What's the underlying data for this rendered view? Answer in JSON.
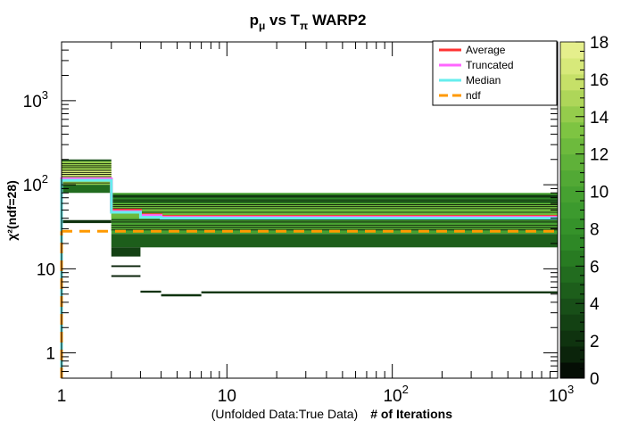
{
  "chart_data": {
    "type": "heatmap",
    "title": {
      "main": "p",
      "main_sub": "μ",
      "mid": " vs T",
      "mid_sub": "π",
      "tail": " WARP2"
    },
    "xlabel": {
      "prefix": "(Unfolded Data:True Data)",
      "main": "# of Iterations"
    },
    "ylabel": "χ²(ndf=28)",
    "x_scale": "log",
    "y_scale": "log",
    "xlim": [
      1,
      1000
    ],
    "ylim": [
      0.5,
      5000
    ],
    "x_ticks": [
      {
        "value": 1,
        "base": "1",
        "exp": ""
      },
      {
        "value": 10,
        "base": "10",
        "exp": ""
      },
      {
        "value": 100,
        "base": "10",
        "exp": "2"
      },
      {
        "value": 1000,
        "base": "10",
        "exp": "3"
      }
    ],
    "y_ticks": [
      {
        "value": 1,
        "base": "1",
        "exp": ""
      },
      {
        "value": 10,
        "base": "10",
        "exp": ""
      },
      {
        "value": 100,
        "base": "10",
        "exp": "2"
      },
      {
        "value": 1000,
        "base": "10",
        "exp": "3"
      }
    ],
    "colorbar": {
      "min": 0,
      "max": 18,
      "ticks": [
        "0",
        "2",
        "4",
        "6",
        "8",
        "10",
        "12",
        "14",
        "16",
        "18"
      ],
      "colors": [
        "#050e05",
        "#0b240b",
        "#0f330f",
        "#134113",
        "#184f18",
        "#1d5e1b",
        "#226c1f",
        "#287b22",
        "#2e8826",
        "#35922a",
        "#3c9a2e",
        "#46a131",
        "#52a935",
        "#5fb139",
        "#6dba3d",
        "#7ec442",
        "#95cc4c",
        "#aed659",
        "#c6e068",
        "#d7e97a",
        "#e5ef8c"
      ]
    },
    "legend_position": "top-right",
    "series": [
      {
        "name": "Average",
        "color": "#ff3333",
        "style": "solid",
        "x": [
          1,
          2,
          3,
          4,
          7,
          50,
          1000
        ],
        "y": [
          115,
          50,
          44,
          42,
          42,
          42,
          42
        ]
      },
      {
        "name": "Truncated",
        "color": "#ff66ff",
        "style": "solid",
        "x": [
          1,
          2,
          3,
          4,
          1000
        ],
        "y": [
          118,
          48,
          43,
          41,
          41
        ]
      },
      {
        "name": "Median",
        "color": "#66eeee",
        "style": "solid",
        "x": [
          1,
          2,
          3,
          4,
          1000
        ],
        "y": [
          113,
          47,
          41,
          40,
          40
        ]
      },
      {
        "name": "ndf",
        "color": "#ff9900",
        "style": "dashed",
        "x": [
          1,
          1000
        ],
        "y": [
          28,
          28
        ]
      }
    ],
    "bands": [
      {
        "x0": 1,
        "x1": 2,
        "y0": 100,
        "y1": 190,
        "level": 16
      },
      {
        "x0": 1,
        "x1": 2,
        "y0": 120,
        "y1": 150,
        "level": 19
      },
      {
        "x0": 1,
        "x1": 2,
        "y0": 190,
        "y1": 200,
        "level": 4
      },
      {
        "x0": 1,
        "x1": 2,
        "y0": 80,
        "y1": 100,
        "level": 6
      },
      {
        "x0": 1,
        "x1": 2,
        "y0": 35,
        "y1": 38,
        "level": 2
      },
      {
        "x0": 2,
        "x1": 1000,
        "y0": 26,
        "y1": 80,
        "level": 11
      },
      {
        "x0": 2,
        "x1": 1000,
        "y0": 40,
        "y1": 60,
        "level": 14
      },
      {
        "x0": 2,
        "x1": 1000,
        "y0": 28,
        "y1": 34,
        "level": 12
      },
      {
        "x0": 2,
        "x1": 1000,
        "y0": 60,
        "y1": 70,
        "level": 8
      },
      {
        "x0": 2,
        "x1": 1000,
        "y0": 70,
        "y1": 76,
        "level": 4
      },
      {
        "x0": 2,
        "x1": 1000,
        "y0": 18,
        "y1": 26,
        "level": 5
      },
      {
        "x0": 2,
        "x1": 3,
        "y0": 14,
        "y1": 18,
        "level": 3
      },
      {
        "x0": 2,
        "x1": 3,
        "y0": 8,
        "y1": 8.4,
        "level": 1
      },
      {
        "x0": 2,
        "x1": 3,
        "y0": 10.5,
        "y1": 11,
        "level": 1
      },
      {
        "x0": 3,
        "x1": 4,
        "y0": 5.2,
        "y1": 5.5,
        "level": 2
      },
      {
        "x0": 4,
        "x1": 7,
        "y0": 4.7,
        "y1": 5.0,
        "level": 2
      },
      {
        "x0": 7,
        "x1": 1000,
        "y0": 5.1,
        "y1": 5.4,
        "level": 2
      }
    ]
  }
}
